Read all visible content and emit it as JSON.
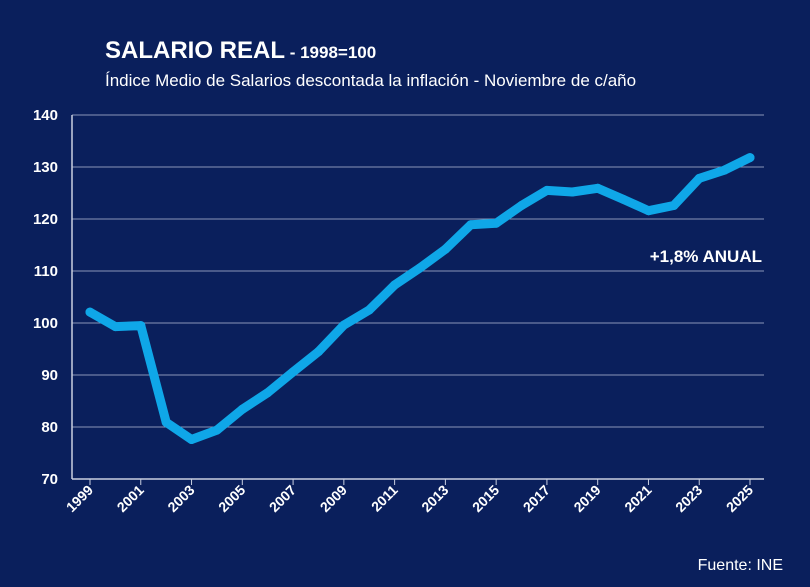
{
  "chart_data": {
    "type": "line",
    "title": "SALARIO REAL",
    "title_suffix": " - 1998=100",
    "subtitle": "Índice Medio de Salarios descontada la inflación - Noviembre de c/año",
    "annotation": "+1,8% ANUAL",
    "source": "Fuente: INE",
    "ylim": [
      70,
      140
    ],
    "yticks": [
      70,
      80,
      90,
      100,
      110,
      120,
      130,
      140
    ],
    "xlim": [
      1999,
      2025
    ],
    "xticks": [
      1999,
      2001,
      2003,
      2005,
      2007,
      2009,
      2011,
      2013,
      2015,
      2017,
      2019,
      2021,
      2023,
      2025
    ],
    "grid": true,
    "line_color": "#0fa7e8",
    "background": "#0a1f5c",
    "x": [
      1999,
      2000,
      2001,
      2002,
      2003,
      2004,
      2005,
      2006,
      2007,
      2008,
      2009,
      2010,
      2011,
      2012,
      2013,
      2014,
      2015,
      2016,
      2017,
      2018,
      2019,
      2020,
      2021,
      2022,
      2023,
      2024,
      2025
    ],
    "values": [
      102.1,
      99.3,
      99.5,
      80.9,
      77.6,
      79.4,
      83.4,
      86.6,
      90.6,
      94.5,
      99.6,
      102.5,
      107.3,
      110.6,
      114.2,
      118.9,
      119.2,
      122.6,
      125.5,
      125.2,
      125.9,
      123.8,
      121.6,
      122.6,
      127.8,
      129.4,
      131.8
    ]
  }
}
